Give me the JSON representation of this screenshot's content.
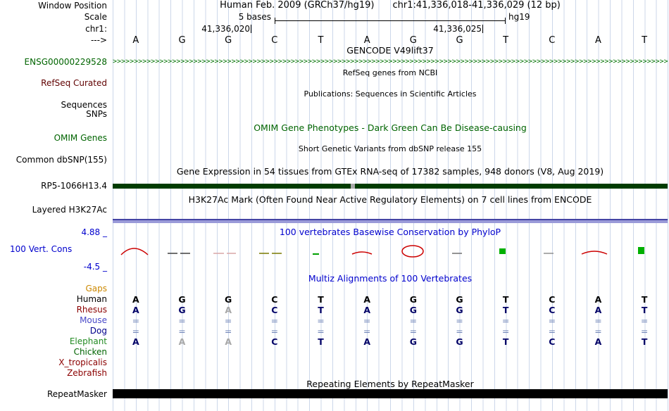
{
  "window": {
    "title_assembly": "Human Feb. 2009 (GRCh37/hg19)",
    "title_position": "chr1:41,336,018-41,336,029 (12 bp)"
  },
  "gutter": {
    "window_position": "Window Position",
    "scale": "Scale",
    "chrom": "chr1:",
    "strand_arrow": "--->",
    "ensg": "ENSG00000229528",
    "refseq_curated": "RefSeq Curated",
    "sequences": "Sequences",
    "snps": "SNPs",
    "omim_genes": "OMIM Genes",
    "common_dbsnp": "Common dbSNP(155)",
    "rp5": "RP5-1066H13.4",
    "layered_h3k27ac": "Layered H3K27Ac",
    "cons_max": "4.88 _",
    "cons_label": "100 Vert. Cons",
    "cons_min": "-4.5 _",
    "repeatmasker": "RepeatMasker"
  },
  "ruler": {
    "scale_value": "5 bases",
    "assembly": "hg19",
    "coord_left": "41,336,020",
    "coord_right": "41,336,025"
  },
  "sequence_bases": [
    "A",
    "G",
    "G",
    "C",
    "T",
    "A",
    "G",
    "G",
    "T",
    "C",
    "A",
    "T"
  ],
  "track_titles": {
    "gencode": "GENCODE V49lift37",
    "refseq": "RefSeq genes from NCBI",
    "publications": "Publications: Sequences in Scientific Articles",
    "omim": "OMIM Gene Phenotypes - Dark Green Can Be Disease-causing",
    "dbsnp": "Short Genetic Variants from dbSNP release 155",
    "gtex": "Gene Expression in 54 tissues from GTEx RNA-seq of 17382 samples, 948 donors (V8, Aug 2019)",
    "h3k27ac": "H3K27Ac Mark (Often Found Near Active Regulatory Elements) on 7 cell lines from ENCODE",
    "phylop": "100 vertebrates Basewise Conservation by PhyloP",
    "multiz": "Multiz Alignments of 100 Vertebrates",
    "repeats": "Repeating Elements by RepeatMasker"
  },
  "gencode_arrows": ">>>>>>>>>>>>>>>>>>>>>>>>>>>>>>>>>>>>>>>>>>>>>>>>>>>>>>>>>>>>>>>>>>>>>>>>>>>>>>>>>>>>>>>>>>>>>>>>>>>>>>>>>>>>>>>>>>>>>>>>>>>>>>>>>>>>>>>",
  "alignment": {
    "species": [
      {
        "name": "Gaps",
        "label_color": "#CC8800",
        "letter_color": "#000000",
        "cells": [],
        "muted": []
      },
      {
        "name": "Human",
        "label_color": "#000000",
        "letter_color": "#000000",
        "cells": [
          "A",
          "G",
          "G",
          "C",
          "T",
          "A",
          "G",
          "G",
          "T",
          "C",
          "A",
          "T"
        ],
        "muted": []
      },
      {
        "name": "Rhesus",
        "label_color": "#8B0000",
        "letter_color": "#000066",
        "cells": [
          "A",
          "G",
          "A",
          "C",
          "T",
          "A",
          "G",
          "G",
          "T",
          "C",
          "A",
          "T"
        ],
        "muted": [
          2
        ]
      },
      {
        "name": "Mouse",
        "label_color": "#4848C8",
        "letter_color": "#000066",
        "cells": [
          "=",
          "=",
          "=",
          "=",
          "=",
          "=",
          "=",
          "=",
          "=",
          "=",
          "=",
          "="
        ],
        "muted": []
      },
      {
        "name": "Dog",
        "label_color": "#00008B",
        "letter_color": "#000066",
        "cells": [
          "=",
          "=",
          "=",
          "=",
          "=",
          "=",
          "=",
          "=",
          "=",
          "=",
          "=",
          "="
        ],
        "muted": []
      },
      {
        "name": "Elephant",
        "label_color": "#228B22",
        "letter_color": "#000066",
        "cells": [
          "A",
          "A",
          "A",
          "C",
          "T",
          "A",
          "G",
          "G",
          "T",
          "C",
          "A",
          "T"
        ],
        "muted": [
          1,
          2
        ]
      },
      {
        "name": "Chicken",
        "label_color": "#006400",
        "letter_color": "#000066",
        "cells": [],
        "muted": []
      },
      {
        "name": "X_tropicalis",
        "label_color": "#8B0000",
        "letter_color": "#000066",
        "cells": [],
        "muted": []
      },
      {
        "name": "Zebrafish",
        "label_color": "#8B0000",
        "letter_color": "#000066",
        "cells": [],
        "muted": []
      }
    ]
  },
  "colors": {
    "green_track": "#006400",
    "blue_title": "#0000CD",
    "maroon_label": "#600000",
    "orange_label": "#CC8800",
    "gridline": "#CCD7EA",
    "rp5_bar": "#003C00",
    "h3k27ac_bar": "#9A9AD8",
    "repeat_bar": "#000000",
    "conservation_positive": "#CC0000",
    "conservation_green": "#00B000"
  }
}
